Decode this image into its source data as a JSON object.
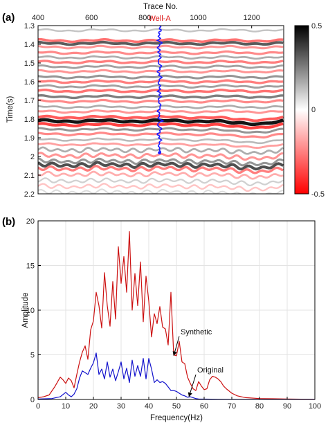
{
  "chart_data": [
    {
      "panel": "(a)",
      "type": "heatmap",
      "title": "",
      "xlabel": "Trace No.",
      "ylabel": "Time(s)",
      "xlim": [
        400,
        1320
      ],
      "ylim": [
        1.3,
        2.2
      ],
      "x_ticks": [
        "400",
        "600",
        "800",
        "1000",
        "1200"
      ],
      "y_ticks": [
        "1.3",
        "1.4",
        "1.5",
        "1.6",
        "1.7",
        "1.8",
        "1.9",
        "2",
        "2.1",
        "2.2"
      ],
      "colorbar": {
        "max_label": "0.5",
        "mid_label": "0",
        "min_label": "-0.5",
        "positive_color": "#000000",
        "negative_color": "#ff0000",
        "zero_color": "#ffffff"
      },
      "well": {
        "name": "Well-A",
        "trace": 855,
        "time_range": [
          1.3,
          1.98
        ],
        "color": "#1a1aff"
      },
      "reflectors": [
        {
          "t": 1.325,
          "amp": 0.25
        },
        {
          "t": 1.38,
          "amp": -0.6
        },
        {
          "t": 1.395,
          "amp": 0.7
        },
        {
          "t": 1.415,
          "amp": -0.45
        },
        {
          "t": 1.445,
          "amp": -0.5
        },
        {
          "t": 1.47,
          "amp": 0.35
        },
        {
          "t": 1.495,
          "amp": -0.55
        },
        {
          "t": 1.52,
          "amp": 0.4
        },
        {
          "t": 1.545,
          "amp": -0.45
        },
        {
          "t": 1.575,
          "amp": 0.45
        },
        {
          "t": 1.6,
          "amp": -0.55
        },
        {
          "t": 1.625,
          "amp": 0.4
        },
        {
          "t": 1.65,
          "amp": -0.6
        },
        {
          "t": 1.68,
          "amp": 0.55
        },
        {
          "t": 1.705,
          "amp": -0.5
        },
        {
          "t": 1.735,
          "amp": 0.35
        },
        {
          "t": 1.76,
          "amp": -0.45
        },
        {
          "t": 1.79,
          "amp": -0.7
        },
        {
          "t": 1.81,
          "amp": 1.0
        },
        {
          "t": 1.83,
          "amp": -0.8
        },
        {
          "t": 1.855,
          "amp": 0.45
        },
        {
          "t": 1.88,
          "amp": -0.5
        },
        {
          "t": 1.91,
          "amp": 0.3
        },
        {
          "t": 1.935,
          "amp": -0.4
        },
        {
          "t": 1.965,
          "amp": 0.35
        },
        {
          "t": 1.995,
          "amp": -0.45
        },
        {
          "t": 2.025,
          "amp": 0.45
        },
        {
          "t": 2.045,
          "amp": 0.75
        },
        {
          "t": 2.065,
          "amp": -0.55
        },
        {
          "t": 2.095,
          "amp": -0.35
        },
        {
          "t": 2.13,
          "amp": 0.2
        },
        {
          "t": 2.16,
          "amp": -0.25
        },
        {
          "t": 2.19,
          "amp": 0.15
        }
      ]
    },
    {
      "panel": "(b)",
      "type": "line",
      "title": "",
      "xlabel": "Frequency(Hz)",
      "ylabel": "Amplitude",
      "xlim": [
        0,
        100
      ],
      "ylim": [
        0,
        20
      ],
      "x_ticks": [
        "0",
        "10",
        "20",
        "30",
        "40",
        "50",
        "60",
        "70",
        "80",
        "90",
        "100"
      ],
      "y_ticks": [
        "0",
        "5",
        "10",
        "15",
        "20"
      ],
      "grid": true,
      "series": [
        {
          "name": "Synthetic",
          "color": "#cc1111",
          "x": [
            0,
            2,
            4,
            6,
            8,
            9,
            10,
            11,
            12,
            13,
            14,
            15,
            16,
            17,
            18,
            19,
            20,
            21,
            22,
            23,
            24,
            25,
            26,
            27,
            28,
            29,
            30,
            31,
            32,
            33,
            34,
            35,
            36,
            37,
            38,
            39,
            40,
            41,
            42,
            43,
            44,
            45,
            46,
            47,
            48,
            49,
            50,
            51,
            52,
            53,
            54,
            55,
            56,
            57,
            58,
            59,
            60,
            61,
            62,
            63,
            64,
            65,
            66,
            67,
            68,
            70,
            72,
            75,
            80,
            85,
            90,
            95,
            100
          ],
          "y": [
            0.2,
            0.3,
            0.5,
            1.4,
            2.5,
            2.2,
            1.8,
            2.4,
            2.1,
            1.3,
            2.8,
            4.2,
            5.3,
            6.0,
            4.5,
            7.8,
            8.8,
            12.0,
            10.5,
            8.0,
            14.2,
            10.5,
            8.2,
            13.2,
            9.0,
            17.1,
            13.0,
            16.0,
            12.0,
            18.8,
            10.0,
            14.1,
            10.5,
            15.4,
            8.7,
            13.8,
            11.0,
            7.0,
            9.6,
            8.5,
            10.4,
            8.1,
            7.9,
            6.1,
            12.0,
            5.0,
            4.9,
            6.5,
            4.2,
            4.0,
            2.5,
            1.8,
            1.2,
            1.0,
            2.0,
            1.5,
            1.1,
            1.2,
            2.2,
            2.6,
            2.5,
            2.3,
            2.0,
            1.5,
            1.2,
            0.7,
            0.4,
            0.2,
            0.1,
            0.08,
            0.05,
            0.03,
            0.02
          ]
        },
        {
          "name": "Original",
          "color": "#1111cc",
          "x": [
            0,
            5,
            8,
            10,
            11,
            12,
            13,
            14,
            15,
            16,
            17,
            18,
            19,
            20,
            21,
            22,
            23,
            24,
            25,
            26,
            27,
            28,
            29,
            30,
            31,
            32,
            33,
            34,
            35,
            36,
            37,
            38,
            39,
            40,
            41,
            42,
            43,
            44,
            45,
            46,
            47,
            48,
            49,
            50,
            51,
            52,
            53,
            54,
            55,
            56,
            57,
            58,
            60,
            65,
            70,
            80,
            90,
            100
          ],
          "y": [
            0.05,
            0.1,
            0.3,
            0.8,
            0.5,
            0.3,
            0.6,
            1.2,
            2.4,
            3.2,
            3.0,
            2.8,
            3.5,
            4.1,
            5.2,
            2.8,
            3.4,
            2.3,
            4.2,
            2.5,
            3.4,
            2.1,
            3.1,
            4.2,
            2.3,
            3.5,
            1.9,
            4.4,
            2.6,
            3.8,
            2.6,
            4.6,
            2.3,
            4.6,
            3.4,
            1.9,
            2.2,
            1.9,
            2.0,
            1.8,
            1.4,
            1.0,
            1.0,
            0.9,
            0.7,
            0.5,
            0.4,
            0.25,
            0.3,
            0.2,
            0.1,
            0.05,
            0.04,
            0.02,
            0.01,
            0.01,
            0.01,
            0.01
          ]
        }
      ],
      "annotations": [
        {
          "text": "Synthetic",
          "target": [
            49,
            4.9
          ]
        },
        {
          "text": "Original",
          "target": [
            54.5,
            0.3
          ]
        }
      ]
    }
  ]
}
